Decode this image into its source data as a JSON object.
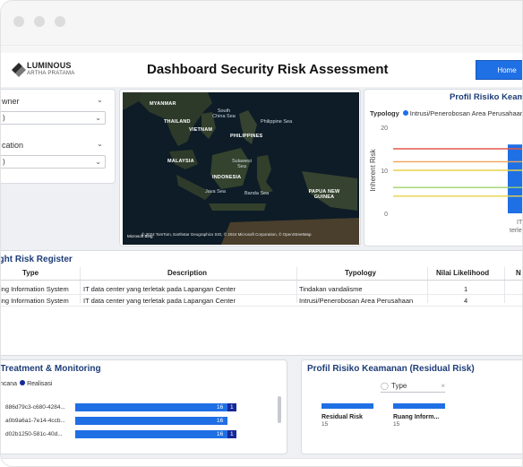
{
  "header": {
    "logo_text1": "LUMINOUS",
    "logo_text2": "ARTHA PRATAMA",
    "title": "Dashboard Security Risk Assessment",
    "home_label": "Home"
  },
  "filters": {
    "filter1_label": "wner",
    "filter1_value": ")",
    "filter2_label": "cation",
    "filter2_value": ")"
  },
  "map": {
    "labels": {
      "myanmar": "MYANMAR",
      "thailand": "THAILAND",
      "vietnam": "VIETNAM",
      "philippines": "PHILIPPINES",
      "malaysia": "MALAYSIA",
      "indonesia": "INDONESIA",
      "papua": "PAPUA NEW GUINEA",
      "south_china_sea": "South China Sea",
      "philippine_sea": "Philippine Sea",
      "sulawesi_sea": "Sulawesi Sea",
      "java_sea": "Java Sea",
      "banda_sea": "Banda Sea"
    },
    "credit": "© 2024 TomTom, Earthstar Geographics SIO, © 2024 Microsoft Corporation, © OpenStreetMap",
    "bing": "Microsoft Bing"
  },
  "inherent": {
    "title": "Profil Risiko Keamanan (Inherent Risk)",
    "legend_label": "Typology",
    "legend_item": "Intrusi/Penerobosan Area Perusahaan",
    "y_label": "Inherent Risk",
    "bar_label_line1": "IT d",
    "bar_label_line2": "terleta",
    "colors": {
      "bar": "#1f6fe5",
      "red": "#e2574c",
      "orange": "#f0a35a",
      "yellow": "#e8d24a",
      "green": "#9fd36a"
    }
  },
  "chart_data": {
    "type": "bar",
    "ylabel": "Inherent Risk",
    "ylim": [
      0,
      20
    ],
    "yticks": [
      0,
      10,
      20
    ],
    "categories": [
      "IT data center terletak"
    ],
    "series": [
      {
        "name": "Intrusi/Penerobosan Area Perusahaan",
        "values": [
          16
        ]
      }
    ],
    "reference_lines": [
      15,
      12,
      10,
      6,
      4
    ]
  },
  "register": {
    "title": "light Risk Register",
    "headers": {
      "type": "Type",
      "description": "Description",
      "typology": "Typology",
      "likelihood": "Nilai Likelihood",
      "next": "N"
    },
    "rows": [
      {
        "type": "ing Information System",
        "description": "IT data center yang terletak pada Lapangan Center",
        "typology": "Tindakan vandalisme",
        "likelihood": "1"
      },
      {
        "type": "ing Information System",
        "description": "IT data center yang terletak pada Lapangan Center",
        "typology": "Intrusi/Penerobosan Area Perusahaan",
        "likelihood": "4"
      }
    ]
  },
  "treatment": {
    "title": "k Treatment & Monitoring",
    "legend_rencana": "ncana",
    "legend_realisasi": "Realisasi",
    "rows": [
      {
        "id": "886d79c3-c680-4284...",
        "rencana": "16",
        "realisasi": "1"
      },
      {
        "id": "a0b9a6a1-7e14-4ccb...",
        "rencana": "16",
        "realisasi": ""
      },
      {
        "id": "d02b1250-581c-40d...",
        "rencana": "16",
        "realisasi": "1"
      }
    ]
  },
  "residual": {
    "title": "Profil Risiko Keamanan (Residual Risk)",
    "search_text": "Type",
    "nodes": [
      {
        "label": "Residual Risk",
        "value": "15"
      },
      {
        "label": "Ruang Inform...",
        "value": "15"
      }
    ]
  }
}
